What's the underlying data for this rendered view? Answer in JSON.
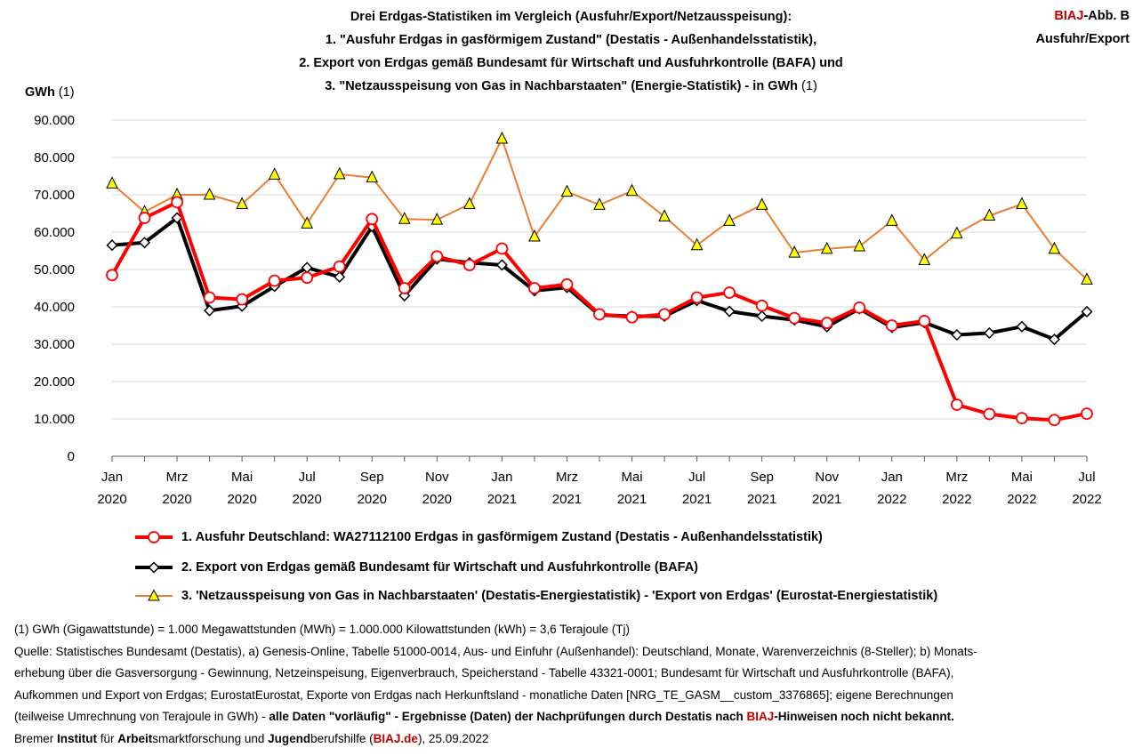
{
  "title": {
    "line1": "Drei Erdgas-Statistiken im Vergleich (Ausfuhr/Export/Netzausspeisung):",
    "line2": "1. \"Ausfuhr Erdgas in gasförmigem Zustand\" (Destatis - Außenhandelsstatistik),",
    "line3": "2.  Export von Erdgas gemäß Bundesamt für Wirtschaft und Ausfuhrkontrolle (BAFA)  und",
    "line4_main": "3. \"Netzausspeisung von Gas in Nachbarstaaten\" (Energie-Statistik)   - in GWh",
    "line4_note": " (1)"
  },
  "tag": {
    "brand": "BIAJ",
    "label": "-Abb. B",
    "line2": "Ausfuhr/Export"
  },
  "y_axis_label": {
    "unit": "GWh",
    "note": " (1)"
  },
  "chart_data": {
    "type": "line",
    "x": [
      "Jan 2020",
      "Feb 2020",
      "Mrz 2020",
      "Apr 2020",
      "Mai 2020",
      "Jun 2020",
      "Jul 2020",
      "Aug 2020",
      "Sep 2020",
      "Okt 2020",
      "Nov 2020",
      "Dez 2020",
      "Jan 2021",
      "Feb 2021",
      "Mrz 2021",
      "Apr 2021",
      "Mai 2021",
      "Jun 2021",
      "Jul 2021",
      "Aug 2021",
      "Sep 2021",
      "Okt 2021",
      "Nov 2021",
      "Dez 2021",
      "Jan 2022",
      "Feb 2022",
      "Mrz 2022",
      "Apr 2022",
      "Mai 2022",
      "Jun 2022",
      "Jul 2022"
    ],
    "tick_labels": [
      {
        "index": 0,
        "month": "Jan",
        "year": "2020"
      },
      {
        "index": 2,
        "month": "Mrz",
        "year": "2020"
      },
      {
        "index": 4,
        "month": "Mai",
        "year": "2020"
      },
      {
        "index": 6,
        "month": "Jul",
        "year": "2020"
      },
      {
        "index": 8,
        "month": "Sep",
        "year": "2020"
      },
      {
        "index": 10,
        "month": "Nov",
        "year": "2020"
      },
      {
        "index": 12,
        "month": "Jan",
        "year": "2021"
      },
      {
        "index": 14,
        "month": "Mrz",
        "year": "2021"
      },
      {
        "index": 16,
        "month": "Mai",
        "year": "2021"
      },
      {
        "index": 18,
        "month": "Jul",
        "year": "2021"
      },
      {
        "index": 20,
        "month": "Sep",
        "year": "2021"
      },
      {
        "index": 22,
        "month": "Nov",
        "year": "2021"
      },
      {
        "index": 24,
        "month": "Jan",
        "year": "2022"
      },
      {
        "index": 26,
        "month": "Mrz",
        "year": "2022"
      },
      {
        "index": 28,
        "month": "Mai",
        "year": "2022"
      },
      {
        "index": 30,
        "month": "Jul",
        "year": "2022"
      }
    ],
    "ylim": [
      0,
      90000
    ],
    "yticks": [
      0,
      10000,
      20000,
      30000,
      40000,
      50000,
      60000,
      70000,
      80000,
      90000
    ],
    "ytick_labels": [
      "0",
      "10.000",
      "20.000",
      "30.000",
      "40.000",
      "50.000",
      "60.000",
      "70.000",
      "80.000",
      "90.000"
    ],
    "grid": true,
    "series": [
      {
        "name": "1. Ausfuhr Deutschland:  WA27112100 Erdgas in gasförmigem Zustand (Destatis - Außenhandelsstatistik)",
        "color": "#ff0000",
        "marker": "circle",
        "values": [
          48500,
          63800,
          68000,
          42500,
          42000,
          47000,
          47800,
          50800,
          63500,
          45000,
          53500,
          51200,
          55600,
          45000,
          46000,
          38000,
          37200,
          38000,
          42500,
          43800,
          40300,
          37000,
          35700,
          39800,
          35000,
          36200,
          13800,
          11300,
          10200,
          9700,
          11400
        ]
      },
      {
        "name": "2. Export von Erdgas gemäß Bundesamt für Wirtschaft und Ausfuhrkontrolle (BAFA)",
        "color": "#000000",
        "marker": "diamond",
        "values": [
          56500,
          57200,
          63800,
          39000,
          40200,
          45500,
          50500,
          48000,
          61500,
          43000,
          52800,
          51800,
          51200,
          44300,
          45200,
          37800,
          37500,
          37500,
          41700,
          38800,
          37500,
          36500,
          34700,
          39500,
          34500,
          35800,
          32500,
          33000,
          34700,
          31300,
          38700
        ]
      },
      {
        "name": "3. 'Netzausspeisung von Gas in Nachbarstaaten' (Destatis-Energiestatistik) - 'Export von Erdgas' (Eurostat-Energiestatistik)",
        "color": "#ed7d31",
        "marker": "triangle",
        "values": [
          73000,
          65400,
          70000,
          70000,
          67500,
          75400,
          62300,
          75500,
          74600,
          63500,
          63300,
          67500,
          85000,
          58800,
          70800,
          67300,
          71000,
          64200,
          56500,
          63000,
          67300,
          54500,
          55500,
          56200,
          63000,
          52500,
          59600,
          64400,
          67500,
          55500,
          47300
        ]
      }
    ]
  },
  "notes": {
    "line1": "(1) GWh (Gigawattstunde) = 1.000 Megawattstunden (MWh)  = 1.000.000 Kilowattstunden (kWh) = 3,6 Terajoule (Tj)",
    "line2": "Quelle: Statistisches Bundesamt (Destatis), a) Genesis-Online, Tabelle 51000-0014, Aus- und Einfuhr (Außenhandel): Deutschland, Monate, Warenverzeichnis (8-Steller); b) Monats-",
    "line3": "erhebung über die Gasversorgung - Gewinnung, Netzeinspeisung, Eigenverbrauch, Speicherstand - Tabelle 43321-0001; Bundesamt für Wirtschaft und Ausfuhrkontrolle (BAFA),",
    "line4": "Aufkommen und Export von Erdgas; EurostatEurostat, Exporte von Erdgas nach Herkunftsland - monatliche Daten [NRG_TE_GASM__custom_3376865]; eigene Berechnungen",
    "line5_a": "(teilweise Umrechnung von Terajoule in GWh) - ",
    "line5_b": "alle Daten \"vorläufig\" - Ergebnisse (Daten) der Nachprüfungen durch Destatis nach ",
    "line5_c": "BIAJ",
    "line5_d": "-Hinweisen noch nicht bekannt.",
    "line6": {
      "w1a": "Bremer ",
      "w1b": "Institut",
      "w2a": " für ",
      "w2b": "Arbeit",
      "w3a": "smarktforschung und ",
      "w3b": "Jugend",
      "w4a": "berufshilfe (",
      "w4b": "BIAJ.de",
      "w4c": "), 25.09.2022"
    }
  }
}
